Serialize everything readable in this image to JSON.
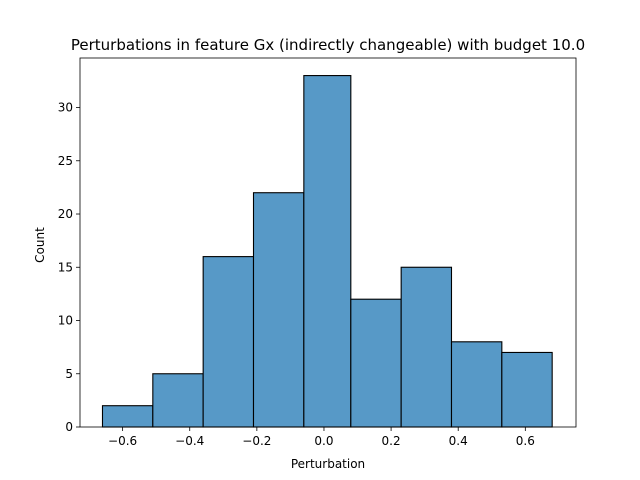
{
  "chart_data": {
    "type": "bar",
    "title": "Perturbations in feature Gx (indirectly changeable) with budget 10.0",
    "xlabel": "Perturbation",
    "ylabel": "Count",
    "xlim": [
      -0.727,
      0.751
    ],
    "ylim": [
      0,
      34.65
    ],
    "xticks": [
      -0.6,
      -0.4,
      -0.2,
      0.0,
      0.2,
      0.4,
      0.6
    ],
    "xtick_labels": [
      "−0.6",
      "−0.4",
      "−0.2",
      "0.0",
      "0.2",
      "0.4",
      "0.6"
    ],
    "yticks": [
      0,
      5,
      10,
      15,
      20,
      25,
      30
    ],
    "ytick_labels": [
      "0",
      "5",
      "10",
      "15",
      "20",
      "25",
      "30"
    ],
    "bin_edges": [
      -0.66,
      -0.51,
      -0.36,
      -0.21,
      -0.06,
      0.08,
      0.23,
      0.38,
      0.53,
      0.68
    ],
    "values": [
      2,
      5,
      16,
      22,
      33,
      12,
      15,
      8,
      7
    ],
    "bar_color": "#5799c7",
    "edge_color": "#000000",
    "grid": false,
    "legend": "none"
  }
}
